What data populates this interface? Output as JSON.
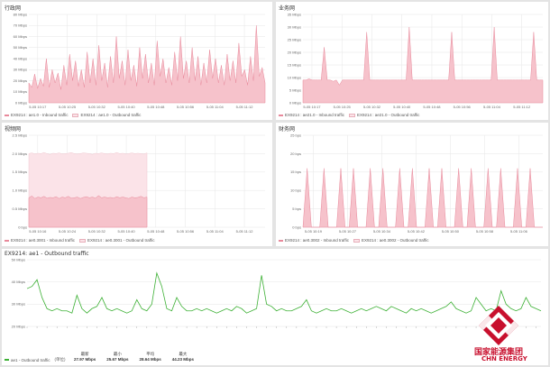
{
  "colors": {
    "inbound_fill": "#f6c2cb",
    "inbound_stroke": "#e8899b",
    "outbound_fill": "#fbe3e8",
    "outbound_line": "#3cb034",
    "brand_red": "#c8102e",
    "grid": "#e6e6e6"
  },
  "panels": {
    "p1": {
      "title": "行政网",
      "legend_in": "EX9214 : ae1.0 - Inbound traffic",
      "legend_out": "EX9214 : ae1.0 - Outbound traffic"
    },
    "p2": {
      "title": "业务网",
      "legend_in": "EX9214 : ae21.0 - Inbound traffic",
      "legend_out": "EX9214 : ae21.0 - Outbound traffic"
    },
    "p3": {
      "title": "视频网",
      "legend_in": "EX9214 : ae0.3001 - Inbound traffic",
      "legend_out": "EX9214 : ae0.3001 - Outbound traffic"
    },
    "p4": {
      "title": "财务网",
      "legend_in": "EX9214 : ae0.3002 - Inbound traffic",
      "legend_out": "EX9214 : ae0.3002 - Outbound traffic"
    },
    "p5": {
      "title": "EX9214: ae1 - Outbound traffic",
      "legend": "ae1 - Outbound traffic",
      "unit_label": "(单位)",
      "stats": [
        {
          "label": "最新",
          "value": "27.97 Mbps"
        },
        {
          "label": "最小",
          "value": "25.67 Mbps"
        },
        {
          "label": "平均",
          "value": "28.64 Mbps"
        },
        {
          "label": "最大",
          "value": "44.23 Mbps"
        }
      ]
    }
  },
  "logo": {
    "cn": "国家能源集团",
    "en": "CHN ENERGY"
  },
  "chart_data": [
    {
      "type": "area",
      "title": "行政网",
      "ylim": [
        0,
        80
      ],
      "y_ticks": [
        "0 Mbps",
        "10 Mbps",
        "20 Mbps",
        "30 Mbps",
        "40 Mbps",
        "50 Mbps",
        "60 Mbps",
        "70 Mbps",
        "80 Mbps"
      ],
      "x_ticks": [
        "5-05 10:17",
        "5-05 10:25",
        "5-05 10:32",
        "5-05 10:40",
        "5-05 10:48",
        "5-05 10:56",
        "5-05 11:04",
        "5-05 11:12"
      ],
      "series": [
        {
          "name": "EX9214 : ae1.0 - Inbound traffic",
          "values": [
            18,
            14,
            26,
            13,
            22,
            15,
            40,
            14,
            30,
            18,
            27,
            12,
            34,
            16,
            44,
            20,
            38,
            15,
            30,
            14,
            46,
            18,
            40,
            16,
            52,
            20,
            36,
            14,
            42,
            18,
            60,
            22,
            38,
            16,
            48,
            20,
            34,
            15,
            50,
            22,
            44,
            18,
            36,
            16,
            56,
            24,
            40,
            18,
            32,
            16,
            46,
            20,
            60,
            22,
            38,
            18,
            50,
            20,
            42,
            16,
            36,
            18,
            48,
            22,
            40,
            18,
            34,
            16,
            44,
            20,
            38,
            18,
            54,
            24,
            30,
            16,
            42,
            20,
            70,
            24,
            32,
            18
          ]
        }
      ]
    },
    {
      "type": "area",
      "title": "业务网",
      "ylim": [
        0,
        35
      ],
      "y_ticks": [
        "0 Mbps",
        "5 Mbps",
        "10 Mbps",
        "15 Mbps",
        "20 Mbps",
        "25 Mbps",
        "30 Mbps",
        "35 Mbps"
      ],
      "x_ticks": [
        "5-05 10:17",
        "5-05 10:25",
        "5-05 10:32",
        "5-05 10:40",
        "5-05 10:48",
        "5-05 10:56",
        "5-05 11:04",
        "5-05 11:12"
      ],
      "series": [
        {
          "name": "EX9214 : ae21.0 - Inbound traffic",
          "values": [
            9,
            9,
            9.5,
            9,
            9,
            9,
            9,
            22,
            9,
            9,
            8.5,
            9,
            7,
            9,
            9,
            9,
            9,
            9,
            9,
            9,
            9,
            28,
            9,
            9,
            9,
            9,
            9,
            9,
            9,
            9,
            9,
            9,
            9,
            9,
            9,
            30,
            9,
            9,
            9,
            9,
            9,
            9,
            9,
            9,
            9,
            9,
            9,
            9,
            9,
            28,
            9,
            9,
            9,
            9,
            9,
            9,
            9,
            9,
            9,
            9,
            9,
            9,
            9,
            30,
            9,
            9,
            9,
            9,
            9,
            9,
            9,
            9,
            9,
            9,
            9,
            9,
            28,
            9,
            9,
            9
          ]
        }
      ]
    },
    {
      "type": "area",
      "title": "视频网",
      "ylim": [
        0,
        2.5
      ],
      "y_ticks": [
        "0 bps",
        "0.5 Mbps",
        "1.0 Mbps",
        "1.5 Mbps",
        "2.0 Mbps",
        "2.5 Mbps"
      ],
      "x_ticks": [
        "5-05 10:16",
        "5-05 10:24",
        "5-05 10:32",
        "5-05 10:40",
        "5-05 10:48",
        "5-05 10:56",
        "5-05 11:04",
        "5-05 11:12"
      ],
      "series": [
        {
          "name": "EX9214 : ae0.3001 - Inbound traffic",
          "values": [
            0.8,
            0.85,
            0.78,
            0.82,
            0.8,
            0.84,
            0.79,
            0.81,
            0.8,
            0.83,
            0.78,
            0.82,
            0.8,
            0.84,
            0.79,
            0.8,
            0.82,
            0.78,
            0.81,
            0.83,
            0.8,
            0.82,
            0.79,
            0.86,
            0.8,
            0.82,
            0.8,
            0.81,
            0.79,
            0.83,
            0.8,
            0.82,
            0.8,
            0.78,
            0.82,
            0.8,
            0.81,
            0.84,
            0.8,
            0.82
          ]
        },
        {
          "name": "EX9214 : ae0.3001 - Outbound traffic",
          "values": [
            2.0,
            2.02,
            1.99,
            2.01,
            2.0,
            2.03,
            2.0,
            1.98,
            2.01,
            2.0,
            2.02,
            1.99,
            2.0,
            2.01,
            2.03,
            2.0,
            1.99,
            2.0,
            2.02,
            2.01,
            2.0,
            1.98,
            2.01,
            2.0,
            2.02,
            2.0,
            1.99,
            2.01,
            2.0,
            2.03,
            2.0,
            2.01,
            1.99,
            2.0,
            2.02,
            2.0,
            2.01,
            2.0,
            1.99,
            2.02
          ]
        }
      ]
    },
    {
      "type": "area",
      "title": "财务网",
      "ylim": [
        0,
        25
      ],
      "y_ticks": [
        "0 bps",
        "5 bps",
        "10 bps",
        "15 bps",
        "20 bps",
        "25 bps"
      ],
      "x_ticks": [
        "5-05 10:19",
        "5-05 10:27",
        "5-05 10:34",
        "5-05 10:42",
        "5-05 10:50",
        "5-05 10:58",
        "5-05 11:06"
      ],
      "series": [
        {
          "name": "EX9214 : ae0.3002 - Inbound traffic",
          "values": [
            0,
            16,
            0,
            0,
            0,
            16,
            0,
            0,
            0,
            16,
            0,
            0,
            16,
            0,
            0,
            0,
            16,
            0,
            0,
            16,
            0,
            0,
            0,
            16,
            0,
            0,
            16,
            0,
            0,
            0,
            16,
            0,
            0,
            16,
            0,
            0,
            0,
            16,
            0,
            0,
            16,
            0,
            0,
            0,
            16,
            0,
            0,
            16,
            0,
            0,
            0,
            16,
            0,
            0,
            16,
            0,
            0,
            0
          ]
        }
      ]
    },
    {
      "type": "line",
      "title": "EX9214: ae1 - Outbound traffic",
      "ylim": [
        20,
        50
      ],
      "y_ticks": [
        "20 Mbps",
        "30 Mbps",
        "40 Mbps",
        "50 Mbps"
      ],
      "series": [
        {
          "name": "ae1 - Outbound traffic",
          "values": [
            37,
            38,
            41,
            33,
            28,
            27,
            28,
            27,
            27,
            26,
            34,
            28,
            26,
            28,
            29,
            33,
            28,
            27,
            28,
            27,
            26,
            27,
            32,
            28,
            27,
            30,
            44,
            38,
            28,
            27,
            33,
            29,
            27,
            27,
            28,
            27,
            28,
            27,
            26,
            27,
            28,
            27,
            29,
            28,
            26,
            27,
            28,
            43,
            30,
            29,
            27,
            28,
            27,
            27,
            28,
            29,
            32,
            27,
            26,
            27,
            28,
            27,
            27,
            28,
            27,
            26,
            27,
            28,
            27,
            28,
            29,
            28,
            27,
            29,
            28,
            27,
            26,
            28,
            27,
            28,
            27,
            26,
            27,
            28,
            29,
            31,
            28,
            27,
            26,
            27,
            33,
            30,
            27,
            28,
            27,
            36,
            30,
            28,
            27,
            28,
            33,
            29,
            28,
            27
          ]
        }
      ]
    }
  ]
}
